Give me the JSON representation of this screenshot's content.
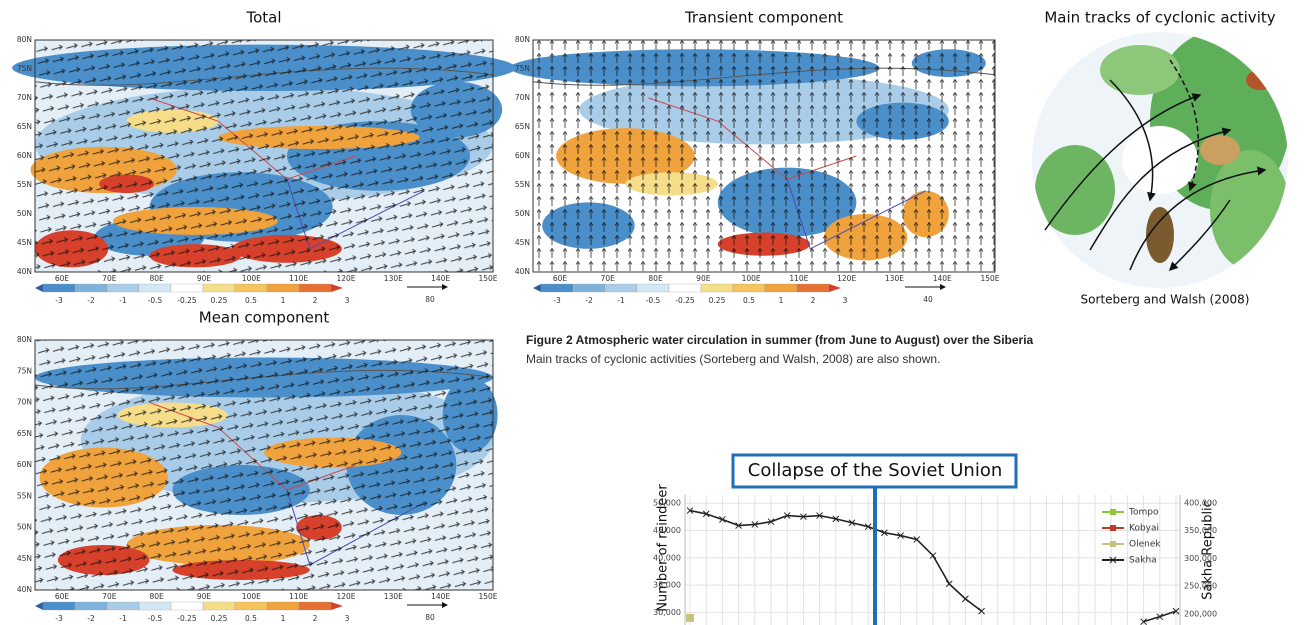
{
  "panels": [
    {
      "title": "Total",
      "lat_labels": [
        "80N",
        "75N",
        "70N",
        "65N",
        "60N",
        "55N",
        "50N",
        "45N",
        "40N"
      ],
      "lon_labels": [
        "60E",
        "70E",
        "80E",
        "90E",
        "100E",
        "110E",
        "120E",
        "130E",
        "140E",
        "150E"
      ],
      "colorbar_labels": [
        "-3",
        "-2",
        "-1",
        "-0.5",
        "-0.25",
        "0.25",
        "0.5",
        "1",
        "2",
        "3"
      ],
      "arrow_scale": "80"
    },
    {
      "title": "Transient component",
      "lat_labels": [
        "80N",
        "75N",
        "70N",
        "65N",
        "60N",
        "55N",
        "50N",
        "45N",
        "40N"
      ],
      "lon_labels": [
        "60E",
        "70E",
        "80E",
        "90E",
        "100E",
        "110E",
        "120E",
        "130E",
        "140E",
        "150E"
      ],
      "colorbar_labels": [
        "-3",
        "-2",
        "-1",
        "-0.5",
        "-0.25",
        "0.25",
        "0.5",
        "1",
        "2",
        "3"
      ],
      "arrow_scale": "40"
    },
    {
      "title": "Mean component",
      "lat_labels": [
        "80N",
        "75N",
        "70N",
        "65N",
        "60N",
        "55N",
        "50N",
        "45N",
        "40N"
      ],
      "lon_labels": [
        "60E",
        "70E",
        "80E",
        "90E",
        "100E",
        "110E",
        "120E",
        "130E",
        "140E",
        "150E"
      ],
      "colorbar_labels": [
        "-3",
        "-2",
        "-1",
        "-0.5",
        "-0.25",
        "0.25",
        "0.5",
        "1",
        "2",
        "3"
      ],
      "arrow_scale": "80"
    }
  ],
  "cyclone_panel": {
    "title": "Main tracks of cyclonic activity",
    "credit": "Sorteberg and Walsh (2008)"
  },
  "caption": {
    "title": "Figure 2   Atmospheric water circulation in summer (from June to August) over the Siberia",
    "text": "Main tracks of cyclonic activities (Sorteberg and Walsh, 2008) are also shown."
  },
  "chart_data": {
    "type": "line",
    "annotation": "Collapse of the Soviet Union",
    "y_label": "Number of reindeer",
    "y2_label": "Sakha Republic",
    "categories": [
      null,
      null,
      null,
      null,
      null,
      null,
      null,
      null,
      null,
      null,
      null,
      null,
      null,
      null,
      null,
      null,
      null,
      null,
      null,
      null,
      null,
      null,
      null,
      null,
      null,
      null,
      null,
      null,
      null,
      null,
      null
    ],
    "series": [
      {
        "name": "Tompo",
        "color": "#8dc63f",
        "values": [
          null,
          null,
          null,
          null,
          null,
          null,
          null,
          null,
          null,
          null,
          null,
          null,
          null,
          null,
          null,
          null,
          null,
          null,
          null,
          null,
          null,
          null,
          null,
          null,
          null,
          null,
          null,
          null,
          null,
          null,
          null
        ]
      },
      {
        "name": "Kobyai",
        "color": "#c0392b",
        "values": [
          null,
          null,
          null,
          null,
          null,
          null,
          null,
          null,
          null,
          null,
          null,
          null,
          null,
          null,
          null,
          null,
          null,
          null,
          null,
          null,
          null,
          null,
          null,
          null,
          null,
          null,
          null,
          null,
          null,
          null,
          null
        ]
      },
      {
        "name": "Olenek",
        "color": "#c8c27a",
        "values": [
          29000,
          null,
          null,
          null,
          null,
          null,
          null,
          null,
          null,
          null,
          null,
          null,
          null,
          null,
          null,
          null,
          null,
          null,
          null,
          null,
          null,
          null,
          null,
          null,
          null,
          null,
          null,
          null,
          null,
          null,
          null
        ]
      },
      {
        "name": "Sakha",
        "color": "#222222",
        "axis": "y2",
        "values": [
          386000,
          380000,
          370000,
          359000,
          361000,
          366000,
          377000,
          375000,
          377000,
          371000,
          364000,
          357000,
          346000,
          341000,
          334000,
          305000,
          254000,
          227000,
          205000,
          null,
          null,
          null,
          null,
          null,
          null,
          null,
          null,
          null,
          186000,
          195000,
          205000
        ]
      }
    ],
    "ylim": [
      27700,
      51500
    ],
    "yticks": [
      {
        "value": 30000,
        "label": "30,000"
      },
      {
        "value": 35000,
        "label": "35,000"
      },
      {
        "value": 40000,
        "label": "40,000"
      },
      {
        "value": 45000,
        "label": "45,000"
      },
      {
        "value": 50000,
        "label": "50,000"
      }
    ],
    "y2lim": [
      180000,
      414000
    ],
    "y2ticks": [
      {
        "value": 200000,
        "label": "200,000"
      },
      {
        "value": 250000,
        "label": "250,000"
      },
      {
        "value": 300000,
        "label": "300,000"
      },
      {
        "value": 350000,
        "label": "350,000"
      },
      {
        "value": 400000,
        "label": "400,000"
      }
    ],
    "grid": true
  }
}
